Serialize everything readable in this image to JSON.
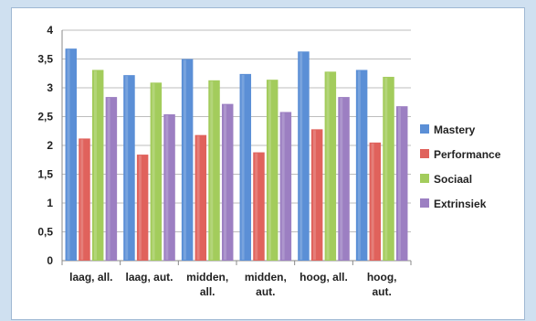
{
  "chart_data": {
    "type": "bar",
    "title": "",
    "xlabel": "",
    "ylabel": "",
    "ylim": [
      0,
      4
    ],
    "yticks": [
      "0",
      "0,5",
      "1",
      "1,5",
      "2",
      "2,5",
      "3",
      "3,5",
      "4"
    ],
    "grid": true,
    "legend_position": "right",
    "categories": [
      [
        "laag, all."
      ],
      [
        "laag, aut."
      ],
      [
        "midden,",
        "all."
      ],
      [
        "midden,",
        "aut."
      ],
      [
        "hoog, all."
      ],
      [
        "hoog,",
        "aut."
      ]
    ],
    "series": [
      {
        "name": "Mastery",
        "color": "#5b8fd6",
        "values": [
          3.68,
          3.22,
          3.5,
          3.24,
          3.63,
          3.31
        ]
      },
      {
        "name": "Performance",
        "color": "#e0625c",
        "values": [
          2.12,
          1.84,
          2.18,
          1.88,
          2.28,
          2.05
        ]
      },
      {
        "name": "Sociaal",
        "color": "#a3cc5c",
        "values": [
          3.31,
          3.09,
          3.13,
          3.14,
          3.28,
          3.19
        ]
      },
      {
        "name": "Extrinsiek",
        "color": "#9c7fc2",
        "values": [
          2.84,
          2.54,
          2.72,
          2.58,
          2.84,
          2.68
        ]
      }
    ]
  }
}
